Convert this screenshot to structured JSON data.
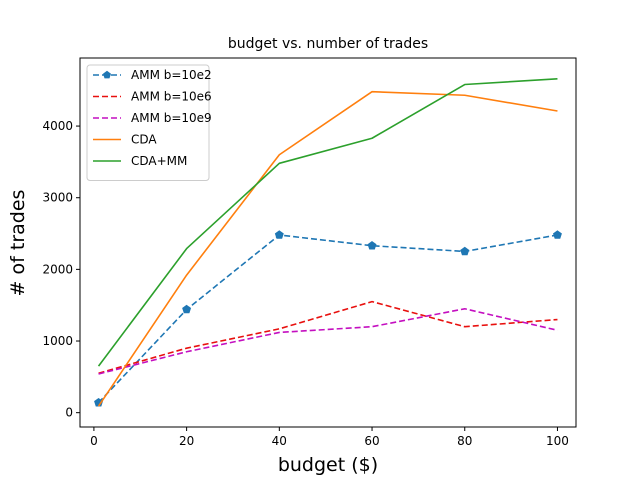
{
  "chart_data": {
    "type": "line",
    "title": "budget vs. number of trades",
    "xlabel": "budget ($)",
    "ylabel": "# of trades",
    "xlim": [
      -3,
      104
    ],
    "ylim": [
      -200,
      4950
    ],
    "xticks": [
      0,
      20,
      40,
      60,
      80,
      100
    ],
    "yticks": [
      0,
      1000,
      2000,
      3000,
      4000
    ],
    "grid": false,
    "legend_position": "top-left",
    "series": [
      {
        "name": "AMM b=10e2",
        "color": "#1f77b4",
        "dash": "dashed",
        "marker": "pentagon",
        "x": [
          1,
          20,
          40,
          60,
          80,
          100
        ],
        "y": [
          140,
          1440,
          2480,
          2330,
          2250,
          2480
        ]
      },
      {
        "name": "AMM b=10e6",
        "color": "#e8100e",
        "dash": "dashed",
        "marker": "none",
        "x": [
          1,
          20,
          40,
          60,
          80,
          100
        ],
        "y": [
          550,
          900,
          1170,
          1550,
          1200,
          1300
        ]
      },
      {
        "name": "AMM b=10e9",
        "color": "#c40fc0",
        "dash": "dashed",
        "marker": "none",
        "x": [
          1,
          20,
          40,
          60,
          80,
          100
        ],
        "y": [
          540,
          850,
          1120,
          1200,
          1450,
          1150
        ]
      },
      {
        "name": "CDA",
        "color": "#ff7f0e",
        "dash": "solid",
        "marker": "none",
        "x": [
          1,
          20,
          40,
          60,
          80,
          100
        ],
        "y": [
          90,
          1920,
          3600,
          4480,
          4430,
          4210
        ]
      },
      {
        "name": "CDA+MM",
        "color": "#2ca02c",
        "dash": "solid",
        "marker": "none",
        "x": [
          1,
          20,
          40,
          60,
          80,
          100
        ],
        "y": [
          650,
          2290,
          3480,
          3830,
          4580,
          4660
        ]
      }
    ]
  }
}
